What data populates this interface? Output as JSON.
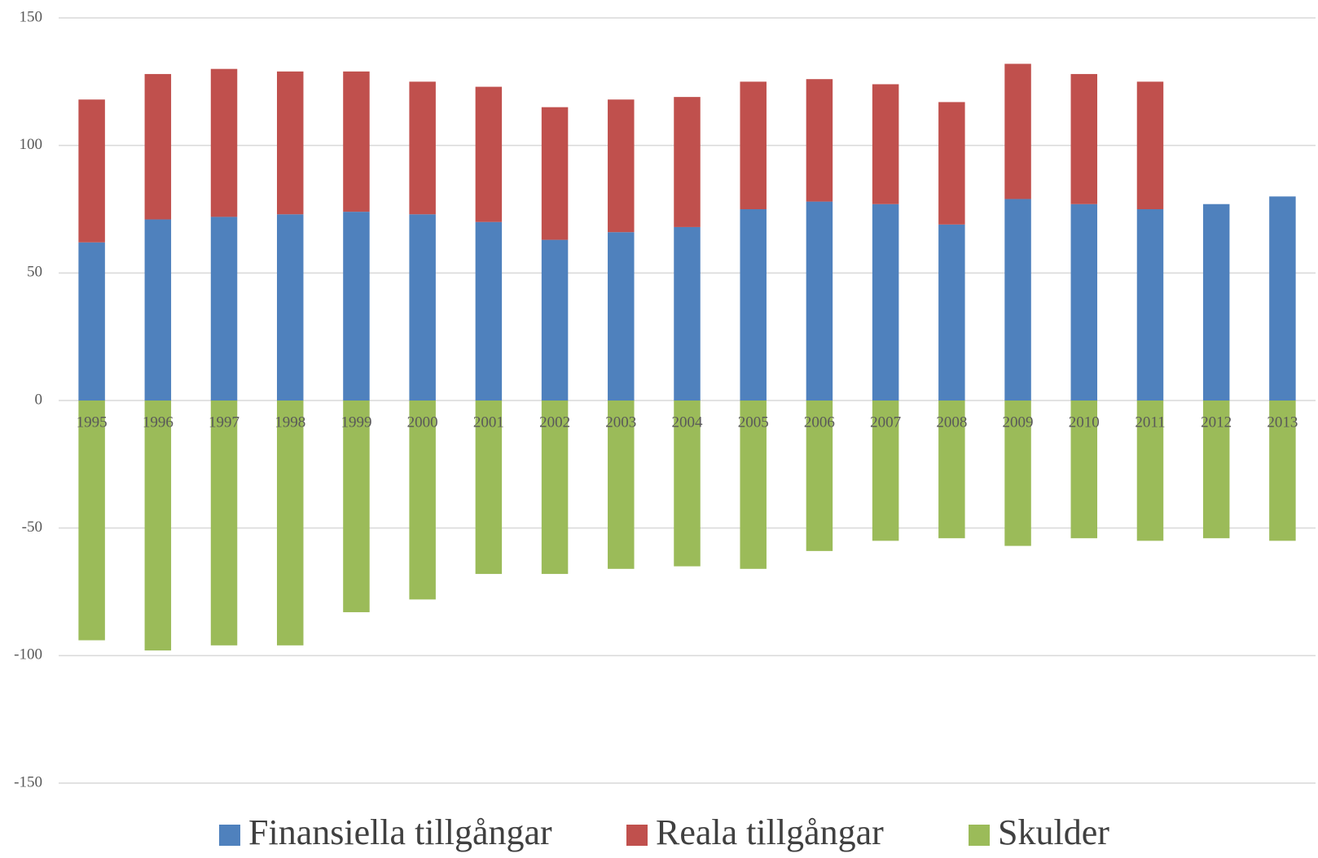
{
  "chart_data": {
    "type": "stacked-bar",
    "categories": [
      "1995",
      "1996",
      "1997",
      "1998",
      "1999",
      "2000",
      "2001",
      "2002",
      "2003",
      "2004",
      "2005",
      "2006",
      "2007",
      "2008",
      "2009",
      "2010",
      "2011",
      "2012",
      "2013"
    ],
    "series": [
      {
        "name": "Finansiella tillgångar",
        "color": "#4f81bd",
        "values": [
          62,
          71,
          72,
          73,
          74,
          73,
          70,
          63,
          66,
          68,
          75,
          78,
          77,
          69,
          79,
          77,
          75,
          77,
          80
        ]
      },
      {
        "name": "Reala tillgångar",
        "color": "#c0504d",
        "values": [
          56,
          57,
          58,
          56,
          55,
          52,
          53,
          52,
          52,
          51,
          50,
          48,
          47,
          48,
          53,
          51,
          50,
          null,
          null
        ]
      },
      {
        "name": "Skulder",
        "color": "#9bbb59",
        "values": [
          -94,
          -98,
          -96,
          -96,
          -83,
          -78,
          -68,
          -68,
          -66,
          -65,
          -66,
          -59,
          -55,
          -54,
          -57,
          -54,
          -55,
          -54,
          -55
        ]
      }
    ],
    "ylim": [
      -150,
      150
    ],
    "yticks": [
      -150,
      -100,
      -50,
      0,
      50,
      100,
      150
    ],
    "grid": true,
    "legend": "bottom"
  }
}
